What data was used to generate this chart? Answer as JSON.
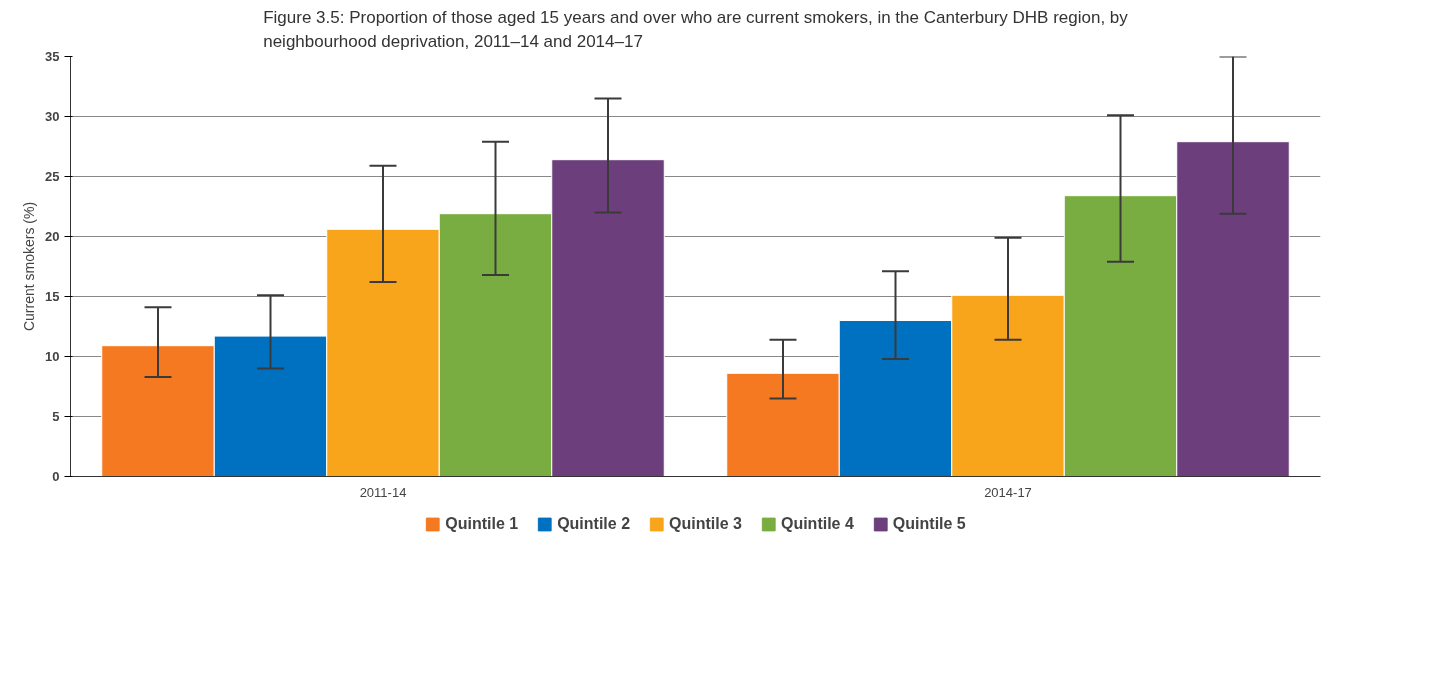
{
  "chart_data": {
    "type": "bar",
    "title": "Figure 3.5: Proportion of those aged 15 years and over who are current smokers, in the Canterbury DHB region, by neighbourhood deprivation, 2011–14 and 2014–17",
    "ylabel": "Current smokers (%)",
    "categories": [
      "2011-14",
      "2014-17"
    ],
    "series": [
      {
        "name": "Quintile 1",
        "color": "#f47920",
        "values": [
          10.9,
          8.6
        ],
        "errors": [
          [
            8.3,
            14.1
          ],
          [
            6.5,
            11.4
          ]
        ]
      },
      {
        "name": "Quintile 2",
        "color": "#0070c0",
        "values": [
          11.7,
          13.0
        ],
        "errors": [
          [
            9.0,
            15.1
          ],
          [
            9.8,
            17.1
          ]
        ]
      },
      {
        "name": "Quintile 3",
        "color": "#f8a51c",
        "values": [
          20.6,
          15.1
        ],
        "errors": [
          [
            16.2,
            25.9
          ],
          [
            11.4,
            19.9
          ]
        ]
      },
      {
        "name": "Quintile 4",
        "color": "#79ad41",
        "values": [
          21.9,
          23.4
        ],
        "errors": [
          [
            16.8,
            27.9
          ],
          [
            17.9,
            30.1
          ]
        ]
      },
      {
        "name": "Quintile 5",
        "color": "#6c3f7c",
        "values": [
          26.4,
          27.9
        ],
        "errors": [
          [
            22.0,
            31.5
          ],
          [
            21.9,
            35.0
          ]
        ]
      }
    ],
    "ylim": [
      0,
      35
    ],
    "yticks": [
      0,
      5,
      10,
      15,
      20,
      25,
      30,
      35
    ],
    "grid": "y",
    "legend": "bottom"
  }
}
